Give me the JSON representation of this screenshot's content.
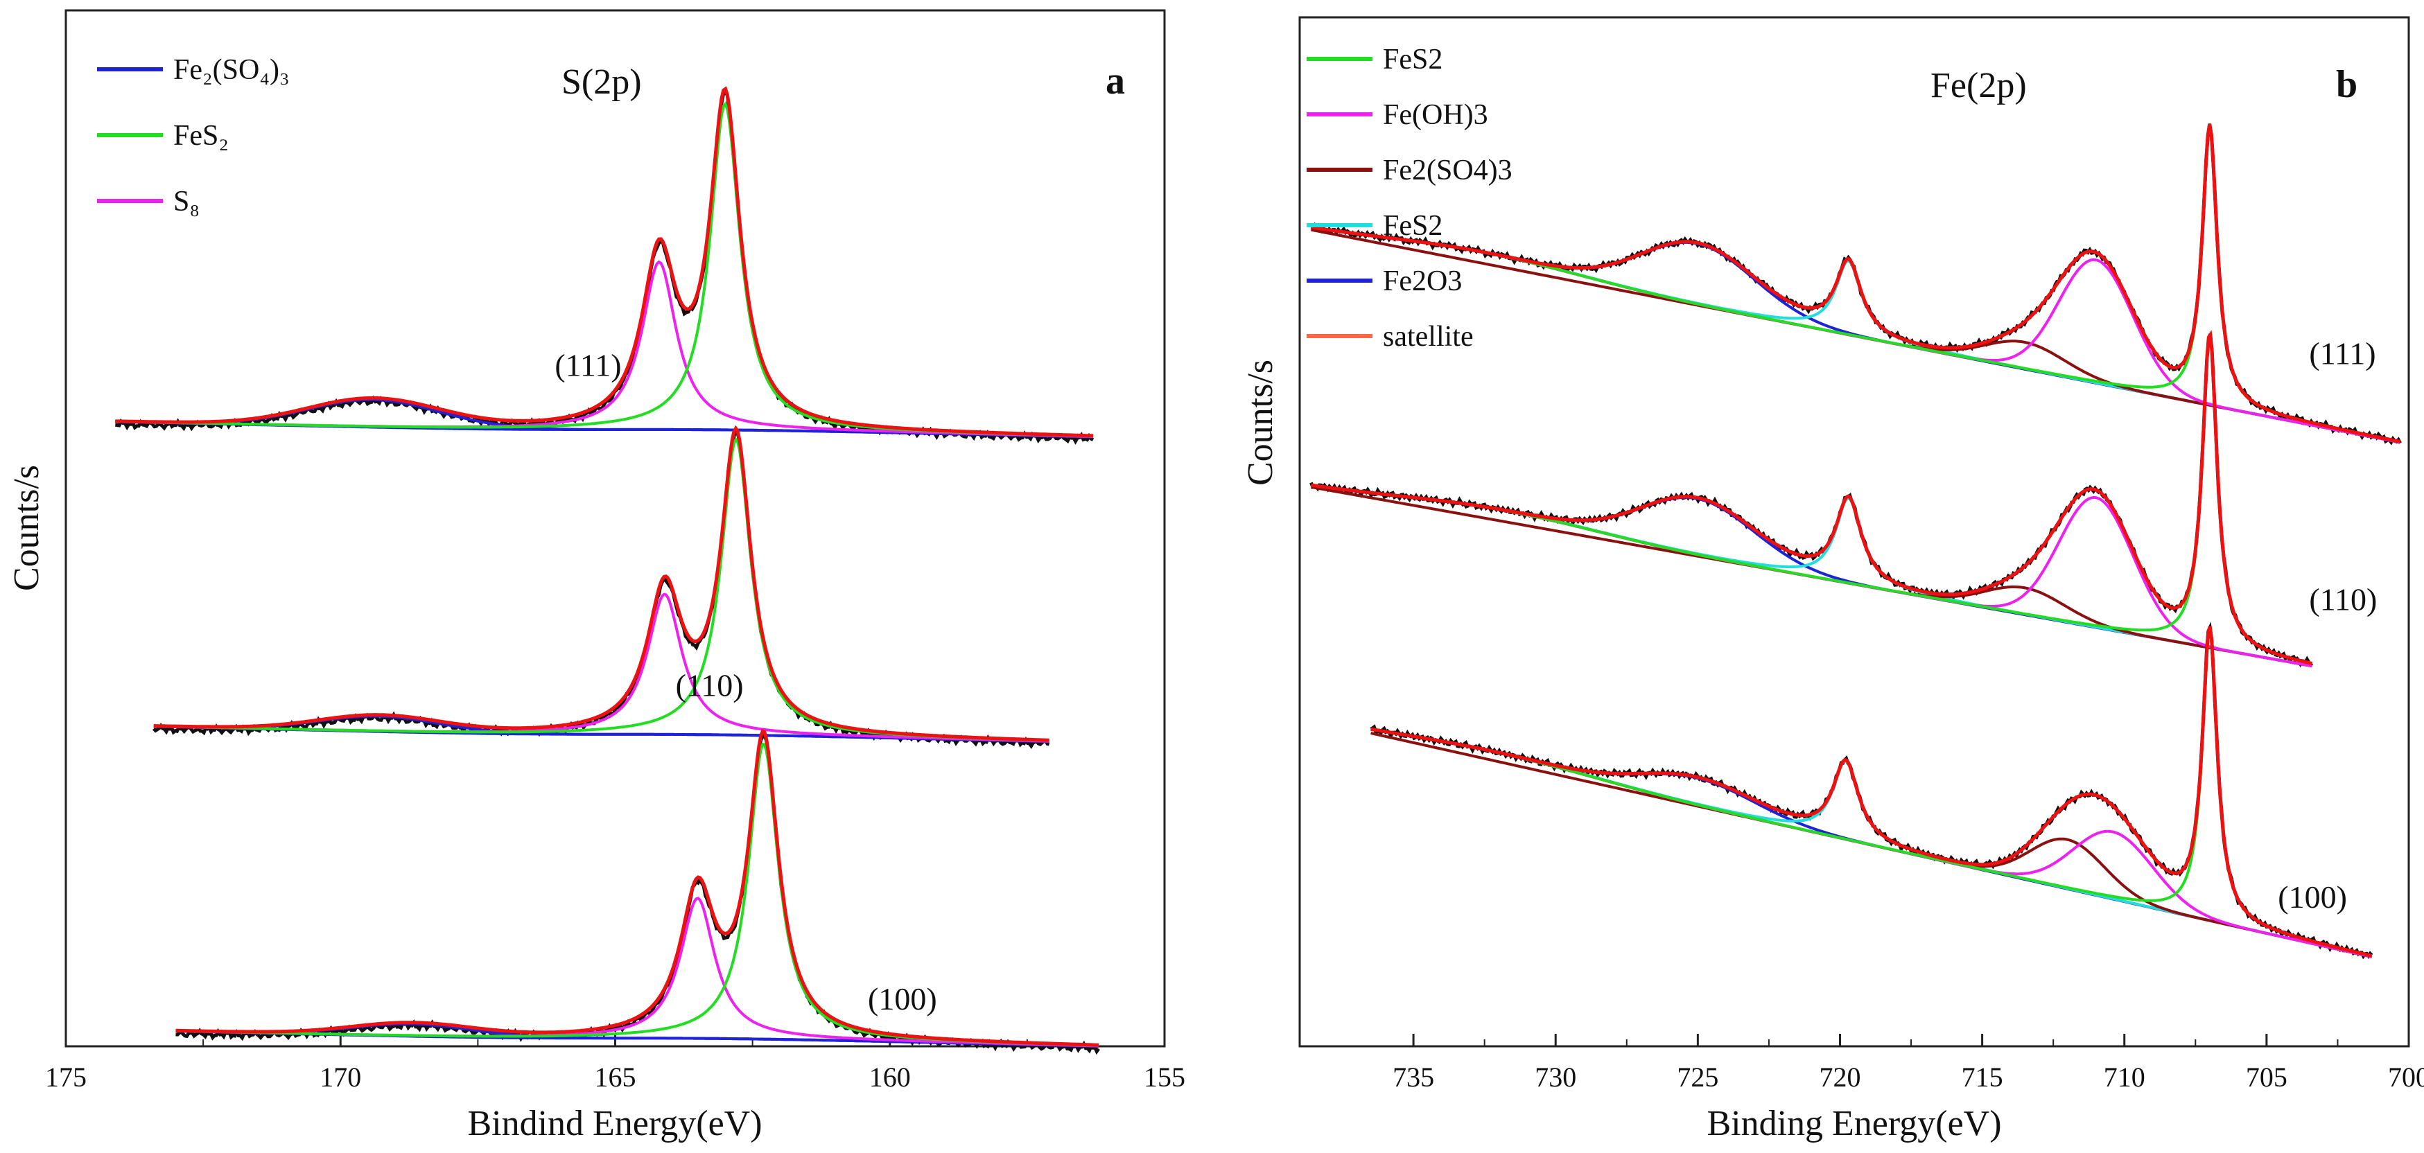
{
  "figure": {
    "description_free": true
  },
  "chart_data": [
    {
      "id": "a",
      "type": "line",
      "panel_label": "a",
      "title": "S(2p)",
      "xlabel": "Bindind Energy(eV)",
      "ylabel": "Counts/s",
      "xlim": [
        175,
        155
      ],
      "x_ticks": [
        "175",
        "170",
        "165",
        "160",
        "155"
      ],
      "x_tick_values": [
        175,
        170,
        165,
        160,
        155
      ],
      "ylim": [
        0,
        3.4
      ],
      "legend": [
        {
          "label": "Fe₂(SO₄)₃",
          "color": "#1e22d8"
        },
        {
          "label": "FeS₂",
          "color": "#22dd22"
        },
        {
          "label": "S₈",
          "color": "#ee22ee"
        }
      ],
      "spectra": [
        {
          "label": "(111)",
          "label_x": 166.1,
          "label_y": 2.2,
          "range": [
            174.1,
            156.3
          ],
          "bg_left": 2.05,
          "bg_right": 1.98,
          "shift": 0,
          "sat": {
            "pos": 169.4,
            "amp": 0.09,
            "w": 1.2
          },
          "s8": {
            "pos": 164.2,
            "amp": 0.55,
            "w": 0.38
          },
          "fes2": {
            "pos": 163.0,
            "amp": 1.07,
            "w": 0.33
          }
        },
        {
          "label": "(110)",
          "label_x": 163.9,
          "label_y": 1.15,
          "range": [
            173.4,
            157.1
          ],
          "bg_left": 1.05,
          "bg_right": 0.98,
          "shift": 0,
          "sat": {
            "pos": 169.3,
            "amp": 0.05,
            "w": 1.1
          },
          "s8": {
            "pos": 164.1,
            "amp": 0.46,
            "w": 0.38
          },
          "fes2": {
            "pos": 162.8,
            "amp": 0.97,
            "w": 0.33
          }
        },
        {
          "label": "(100)",
          "label_x": 160.4,
          "label_y": 0.12,
          "range": [
            173.0,
            156.2
          ],
          "bg_left": 0.05,
          "bg_right": -0.02,
          "shift": 0,
          "sat": {
            "pos": 168.7,
            "amp": 0.04,
            "w": 1.1
          },
          "s8": {
            "pos": 163.5,
            "amp": 0.46,
            "w": 0.38
          },
          "fes2": {
            "pos": 162.3,
            "amp": 0.97,
            "w": 0.33
          }
        }
      ],
      "colors": {
        "fit": "#ee1111",
        "raw": "#111111",
        "background": "#1e22d8"
      }
    },
    {
      "id": "b",
      "type": "line",
      "panel_label": "b",
      "title": "Fe(2p)",
      "xlabel": "Binding Energy(eV)",
      "ylabel": "Counts/s",
      "xlim": [
        739,
        700
      ],
      "x_ticks": [
        "735",
        "730",
        "725",
        "720",
        "715",
        "710",
        "705",
        "700"
      ],
      "x_tick_values": [
        735,
        730,
        725,
        720,
        715,
        710,
        705,
        700
      ],
      "ylim": [
        0,
        4.6
      ],
      "legend": [
        {
          "label": "FeS2",
          "color": "#22dd22"
        },
        {
          "label": "Fe(OH)3",
          "color": "#ee22ee"
        },
        {
          "label": "Fe2(SO4)3",
          "color": "#8b1010"
        },
        {
          "label": "FeS2",
          "color": "#22dddd"
        },
        {
          "label": "Fe2O3",
          "color": "#1e22d8"
        },
        {
          "label": "satellite",
          "color": "#ff6644"
        }
      ],
      "spectra": [
        {
          "label": "(111)",
          "label_x": 703.5,
          "label_y": 3.05,
          "range": [
            738.6,
            700.3
          ],
          "base_left": 3.65,
          "base_right": 2.7,
          "fe2o3": {
            "pos": 725.0,
            "amp": 0.27,
            "w": 2.0
          },
          "fes2_b": {
            "pos": 719.7,
            "amp": 0.33,
            "w": 0.55
          },
          "sulfate": {
            "pos": 713.5,
            "amp": 0.12,
            "w": 1.4
          },
          "hydroxide": {
            "pos": 711.0,
            "amp": 0.55,
            "w": 1.3
          },
          "fes2_a": {
            "pos": 707.0,
            "amp": 1.25,
            "w": 0.32
          },
          "sat_hump": {
            "pos": 732.5,
            "amp": 0.05,
            "w": 3.5
          }
        },
        {
          "label": "(110)",
          "label_x": 703.5,
          "label_y": 1.95,
          "range": [
            738.6,
            703.4
          ],
          "base_left": 2.5,
          "base_right": 1.7,
          "fe2o3": {
            "pos": 725.0,
            "amp": 0.25,
            "w": 2.0
          },
          "fes2_b": {
            "pos": 719.7,
            "amp": 0.38,
            "w": 0.55
          },
          "sulfate": {
            "pos": 713.5,
            "amp": 0.12,
            "w": 1.4
          },
          "hydroxide": {
            "pos": 711.0,
            "amp": 0.58,
            "w": 1.3
          },
          "fes2_a": {
            "pos": 707.0,
            "amp": 1.4,
            "w": 0.32
          },
          "sat_hump": {
            "pos": 732.0,
            "amp": 0.05,
            "w": 3.5
          }
        },
        {
          "label": "(100)",
          "label_x": 704.6,
          "label_y": 0.62,
          "range": [
            736.5,
            701.3
          ],
          "base_left": 1.4,
          "base_right": 0.4,
          "fe2o3": {
            "pos": 725.0,
            "amp": 0.12,
            "w": 2.0
          },
          "fes2_b": {
            "pos": 719.8,
            "amp": 0.35,
            "w": 0.55
          },
          "sulfate": {
            "pos": 712.0,
            "amp": 0.22,
            "w": 1.3
          },
          "hydroxide": {
            "pos": 710.4,
            "amp": 0.3,
            "w": 1.4
          },
          "fes2_a": {
            "pos": 707.0,
            "amp": 1.3,
            "w": 0.32
          },
          "sat_hump": {
            "pos": 732.0,
            "amp": 0.04,
            "w": 3.5
          }
        }
      ],
      "colors": {
        "fit": "#ee1111",
        "raw": "#111111"
      }
    }
  ]
}
